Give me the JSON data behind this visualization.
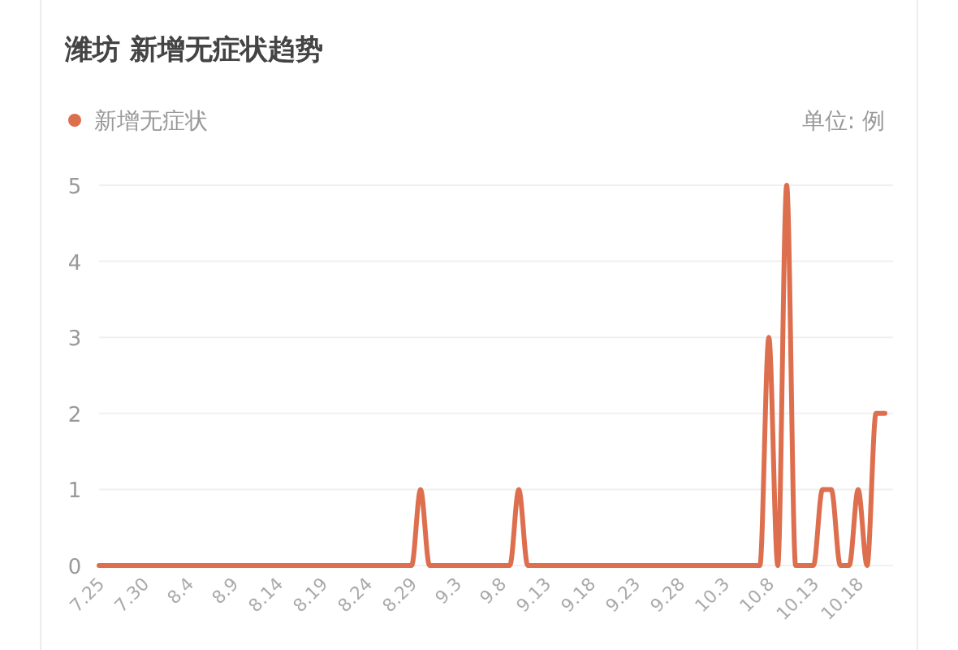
{
  "chart_data": {
    "type": "line",
    "title": "潍坊 新增无症状趋势",
    "annotations": [
      "单位: 例"
    ],
    "categories": [
      "7.25",
      null,
      null,
      null,
      null,
      "7.30",
      null,
      null,
      null,
      null,
      "8.4",
      null,
      null,
      null,
      null,
      "8.9",
      null,
      null,
      null,
      null,
      "8.14",
      null,
      null,
      null,
      null,
      "8.19",
      null,
      null,
      null,
      null,
      "8.24",
      null,
      null,
      null,
      null,
      "8.29",
      null,
      null,
      null,
      null,
      "9.3",
      null,
      null,
      null,
      null,
      "9.8",
      null,
      null,
      null,
      null,
      "9.13",
      null,
      null,
      null,
      null,
      "9.18",
      null,
      null,
      null,
      null,
      "9.23",
      null,
      null,
      null,
      null,
      "9.28",
      null,
      null,
      null,
      null,
      "10.3",
      null,
      null,
      null,
      null,
      "10.8",
      null,
      null,
      null,
      null,
      "10.13",
      null,
      null,
      null,
      null,
      "10.18",
      null,
      null,
      null
    ],
    "series": [
      {
        "name": "新增无症状",
        "color": "#dd6f4f",
        "values": [
          0,
          0,
          0,
          0,
          0,
          0,
          0,
          0,
          0,
          0,
          0,
          0,
          0,
          0,
          0,
          0,
          0,
          0,
          0,
          0,
          0,
          0,
          0,
          0,
          0,
          0,
          0,
          0,
          0,
          0,
          0,
          0,
          0,
          0,
          0,
          0,
          1,
          0,
          0,
          0,
          0,
          0,
          0,
          0,
          0,
          0,
          0,
          1,
          0,
          0,
          0,
          0,
          0,
          0,
          0,
          0,
          0,
          0,
          0,
          0,
          0,
          0,
          0,
          0,
          0,
          0,
          0,
          0,
          0,
          0,
          0,
          0,
          0,
          0,
          0,
          3,
          0,
          5,
          0,
          0,
          0,
          1,
          1,
          0,
          0,
          1,
          0,
          2,
          2
        ]
      }
    ],
    "ylim": [
      0,
      5
    ],
    "yticks": [
      0,
      1,
      2,
      3,
      4,
      5
    ],
    "grid": "y",
    "legend": "top left",
    "marker": "none"
  }
}
